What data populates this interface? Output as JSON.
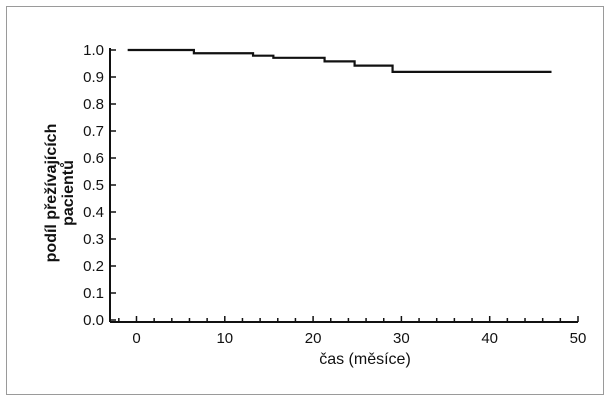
{
  "chart_data": {
    "type": "line",
    "title": "",
    "xlabel": "čas (měsíce)",
    "ylabel_lines": [
      "podíl přežívajících",
      "pacientů"
    ],
    "xlim": [
      -3,
      50
    ],
    "ylim": [
      0,
      1.0
    ],
    "x_ticks": [
      0,
      10,
      20,
      30,
      40,
      50
    ],
    "y_ticks": [
      "0.0",
      "0.1",
      "0.2",
      "0.3",
      "0.4",
      "0.5",
      "0.6",
      "0.7",
      "0.8",
      "0.9",
      "1.0"
    ],
    "grid": false,
    "series": [
      {
        "step": true,
        "x": [
          -1,
          6.5,
          13.2,
          15.5,
          21.3,
          24.7,
          29.0,
          47.0
        ],
        "y": [
          1.0,
          0.988,
          0.979,
          0.971,
          0.958,
          0.942,
          0.919,
          0.919
        ]
      }
    ],
    "line_color": "#111111"
  }
}
